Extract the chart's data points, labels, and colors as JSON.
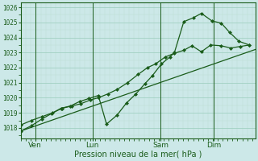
{
  "xlabel": "Pression niveau de la mer( hPa )",
  "bg_color": "#cce8e8",
  "grid_color_major": "#99ccbb",
  "grid_color_minor": "#bbddd0",
  "line_color": "#1a5c1a",
  "ylim": [
    1017.3,
    1026.3
  ],
  "yticks": [
    1018,
    1019,
    1020,
    1021,
    1022,
    1023,
    1024,
    1025,
    1026
  ],
  "xlim": [
    0,
    1
  ],
  "x_tick_labels": [
    "Ven",
    "Lun",
    "Sam",
    "Dim"
  ],
  "x_tick_positions": [
    0.06,
    0.305,
    0.595,
    0.822
  ],
  "x_vline_positions": [
    0.06,
    0.305,
    0.595,
    0.822
  ],
  "trend_x": [
    0.0,
    1.0
  ],
  "trend_y": [
    1017.8,
    1023.2
  ],
  "series2_x": [
    0.0,
    0.045,
    0.09,
    0.135,
    0.175,
    0.215,
    0.255,
    0.295,
    0.33,
    0.37,
    0.41,
    0.455,
    0.5,
    0.54,
    0.575,
    0.615,
    0.655,
    0.695,
    0.73,
    0.77,
    0.81,
    0.855,
    0.895,
    0.935,
    0.975
  ],
  "series2_y": [
    1018.2,
    1018.5,
    1018.75,
    1019.0,
    1019.3,
    1019.45,
    1019.6,
    1019.85,
    1020.0,
    1020.25,
    1020.55,
    1021.0,
    1021.55,
    1022.0,
    1022.25,
    1022.7,
    1022.95,
    1023.15,
    1023.45,
    1023.05,
    1023.5,
    1023.45,
    1023.3,
    1023.4,
    1023.5
  ],
  "series3_x": [
    0.0,
    0.045,
    0.09,
    0.13,
    0.17,
    0.21,
    0.25,
    0.29,
    0.33,
    0.365,
    0.41,
    0.45,
    0.49,
    0.53,
    0.56,
    0.6,
    0.635,
    0.655,
    0.695,
    0.735,
    0.77,
    0.815,
    0.855,
    0.89,
    0.93,
    0.975
  ],
  "series3_y": [
    1017.8,
    1018.15,
    1018.6,
    1018.95,
    1019.3,
    1019.45,
    1019.75,
    1019.95,
    1020.15,
    1018.25,
    1018.85,
    1019.65,
    1020.25,
    1020.95,
    1021.45,
    1022.25,
    1022.7,
    1023.0,
    1025.05,
    1025.3,
    1025.6,
    1025.1,
    1024.95,
    1024.35,
    1023.75,
    1023.5
  ]
}
